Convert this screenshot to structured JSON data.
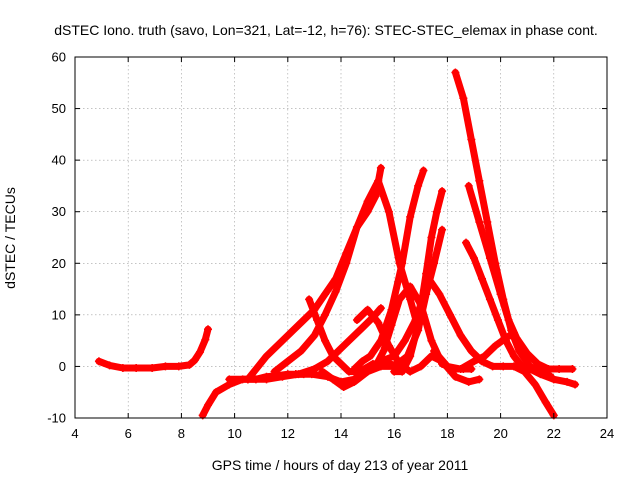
{
  "chart_data": {
    "type": "line",
    "title": "dSTEC Iono. truth (savo, Lon=321, Lat=-12, h=76): STEC-STEC_elemax in phase cont.",
    "xlabel": "GPS time / hours of day 213 of year 2011",
    "ylabel": "dSTEC  / TECUs",
    "xlim": [
      4,
      24
    ],
    "ylim": [
      -10,
      60
    ],
    "xticks": [
      4,
      6,
      8,
      10,
      12,
      14,
      16,
      18,
      20,
      22,
      24
    ],
    "yticks": [
      -10,
      0,
      10,
      20,
      30,
      40,
      50,
      60
    ],
    "grid": true,
    "legend": "none",
    "marker": "plus",
    "color": "#ff0000",
    "series": [
      {
        "x": [
          4.9,
          5.3,
          5.8,
          6.3,
          6.9,
          7.4,
          7.9,
          8.3,
          8.5,
          8.7,
          8.9,
          9.0
        ],
        "y": [
          1,
          0.2,
          -0.3,
          -0.3,
          -0.3,
          0,
          0,
          0.3,
          1.2,
          2.8,
          5.2,
          7.2
        ]
      },
      {
        "x": [
          8.8,
          9.0,
          9.3,
          9.8,
          10.3,
          10.8,
          11.2,
          11.6,
          12.0,
          12.3,
          12.6,
          12.7
        ],
        "y": [
          -9.5,
          -7.5,
          -5,
          -3.5,
          -2.5,
          -2.5,
          -2,
          -1.8,
          -1.5,
          -1.5,
          -1.5,
          -1.2
        ]
      },
      {
        "x": [
          9.8,
          10.5,
          11.2,
          11.8,
          12.4,
          13.0,
          13.5,
          13.9,
          14.3,
          14.8,
          15.2,
          15.5
        ],
        "y": [
          -2.5,
          -2.5,
          -2.5,
          -2,
          -1.5,
          -0.5,
          1,
          3,
          5,
          7.5,
          9.5,
          11.3
        ]
      },
      {
        "x": [
          10.5,
          11.2,
          11.8,
          12.4,
          13.0,
          13.4,
          13.8,
          14.2,
          14.6,
          15.0,
          15.3,
          15.5
        ],
        "y": [
          -2.5,
          2,
          5,
          8,
          11,
          14,
          17,
          22,
          27,
          30,
          33,
          38.5
        ]
      },
      {
        "x": [
          11.5,
          12.0,
          12.5,
          13.0,
          13.4,
          13.8,
          14.2,
          14.6,
          15.0,
          15.4,
          15.8,
          16.2,
          16.6,
          16.9
        ],
        "y": [
          -1,
          1,
          3,
          6,
          10,
          14.5,
          20,
          27,
          32,
          36,
          30,
          20,
          13,
          7.5
        ]
      },
      {
        "x": [
          12.8,
          13.1,
          13.4,
          13.7,
          14.0,
          14.3,
          14.7,
          15.2,
          15.8,
          16.3
        ],
        "y": [
          13,
          9,
          5,
          2,
          0.5,
          -1,
          -1,
          0.5,
          0.5,
          0
        ]
      },
      {
        "x": [
          12.3,
          12.9,
          13.5,
          14.0,
          14.5,
          15.0,
          15.5,
          16.0,
          16.4,
          16.8,
          17.0
        ],
        "y": [
          -1.5,
          -1.5,
          -2,
          -3,
          -2.5,
          -0.5,
          1,
          2,
          5,
          9,
          12
        ]
      },
      {
        "x": [
          13.3,
          13.7,
          14.1,
          14.5,
          15.0,
          15.5,
          16.0,
          16.5,
          16.9,
          17.2,
          17.5,
          17.8
        ],
        "y": [
          -1,
          -2.5,
          -4,
          -3,
          -1,
          0,
          0,
          2,
          7,
          14,
          20,
          26.5
        ]
      },
      {
        "x": [
          14.5,
          14.8,
          15.1,
          15.5,
          15.9,
          16.3,
          16.6,
          16.9,
          17.1
        ],
        "y": [
          -0.5,
          1,
          2,
          5,
          11,
          20,
          29,
          35,
          38
        ]
      },
      {
        "x": [
          14.6,
          15.0,
          15.4,
          15.8,
          16.2,
          16.6,
          17.0,
          17.4,
          17.8,
          18.3,
          18.8,
          19.2
        ],
        "y": [
          9,
          11,
          8.5,
          4,
          0.5,
          -1,
          0,
          2,
          1,
          -2,
          -3,
          -2.5
        ]
      },
      {
        "x": [
          15.3,
          15.6,
          15.9,
          16.2,
          16.6,
          17.0,
          17.4,
          17.8,
          18.2,
          18.6,
          18.9
        ],
        "y": [
          0,
          3,
          8,
          13,
          15.5,
          12,
          5,
          0.5,
          -0.5,
          -0.5,
          -0.5
        ]
      },
      {
        "x": [
          16.0,
          16.3,
          16.6,
          16.9,
          17.2,
          17.4,
          17.6,
          17.8
        ],
        "y": [
          -1,
          -1,
          2,
          8,
          18,
          25,
          30,
          34
        ]
      },
      {
        "x": [
          17.3,
          17.7,
          18.1,
          18.5,
          18.9,
          19.3,
          19.7,
          20.1,
          20.5,
          20.9,
          21.3,
          21.7,
          22.0
        ],
        "y": [
          17,
          14,
          10,
          6,
          3,
          1,
          0,
          0,
          0,
          -1,
          -3.5,
          -7,
          -9.5
        ]
      },
      {
        "x": [
          18.3,
          18.6,
          18.9,
          19.2,
          19.5,
          19.8,
          20.1,
          20.4,
          20.7,
          21.1,
          21.5,
          21.9
        ],
        "y": [
          57,
          52,
          44,
          36,
          28,
          20,
          13,
          7,
          3,
          0,
          -1,
          -2
        ]
      },
      {
        "x": [
          18.7,
          19.0,
          19.3,
          19.6,
          19.9,
          20.2,
          20.5,
          20.8,
          21.1,
          21.5,
          22.0,
          22.5,
          22.8
        ],
        "y": [
          24,
          21,
          17,
          13,
          9,
          5,
          2,
          0,
          -0.5,
          -1.5,
          -2.5,
          -3,
          -3.5
        ]
      },
      {
        "x": [
          18.8,
          19.2,
          19.6,
          20.0,
          20.3,
          20.6,
          21.0,
          21.4,
          21.8,
          22.2,
          22.7
        ],
        "y": [
          35,
          28,
          21,
          14,
          9,
          5.5,
          2.5,
          0.5,
          -0.5,
          -0.5,
          -0.5
        ]
      },
      {
        "x": [
          17.5,
          18.0,
          18.5,
          19.0,
          19.4,
          19.8,
          20.2,
          20.5
        ],
        "y": [
          3,
          0,
          -0.5,
          1,
          2,
          4,
          5.5,
          6.5
        ]
      }
    ]
  }
}
